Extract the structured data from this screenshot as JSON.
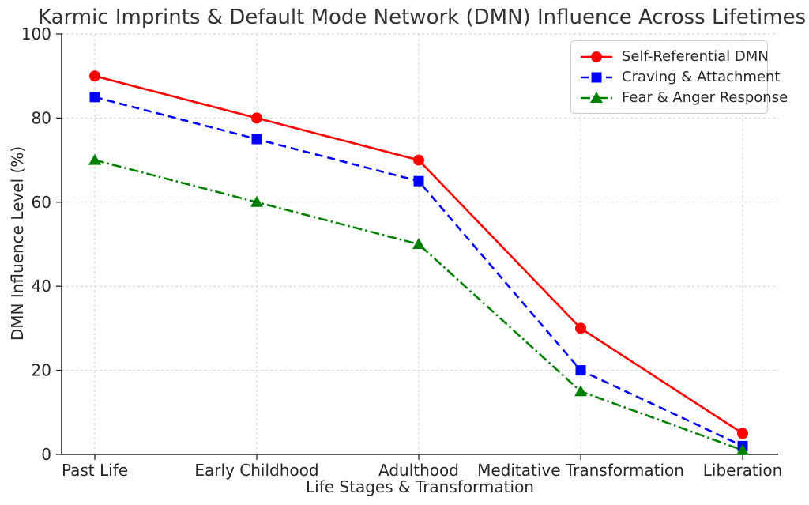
{
  "chart_data": {
    "type": "line",
    "title": "Karmic Imprints & Default Mode Network (DMN) Influence Across Lifetimes",
    "xlabel": "Life Stages & Transformation",
    "ylabel": "DMN Influence Level (%)",
    "categories": [
      "Past Life",
      "Early Childhood",
      "Adulthood",
      "Meditative Transformation",
      "Liberation"
    ],
    "yticks": [
      0,
      20,
      40,
      60,
      80,
      100
    ],
    "ylim": [
      0,
      100
    ],
    "grid": "dashed light-gray, both axes",
    "legend_position": "upper right",
    "series": [
      {
        "name": "Self-Referential DMN",
        "values": [
          90,
          80,
          70,
          30,
          5
        ],
        "color": "#ff0000",
        "line_style": "solid",
        "marker": "circle"
      },
      {
        "name": "Craving & Attachment",
        "values": [
          85,
          75,
          65,
          20,
          2
        ],
        "color": "#0000ff",
        "line_style": "dashed",
        "marker": "square"
      },
      {
        "name": "Fear & Anger Response",
        "values": [
          70,
          60,
          50,
          15,
          1
        ],
        "color": "#008000",
        "line_style": "dashdot",
        "marker": "triangle"
      }
    ],
    "colors": {
      "grid": "#cfcfcf",
      "spine": "#262626",
      "text": "#262626",
      "title": "#333333"
    }
  }
}
